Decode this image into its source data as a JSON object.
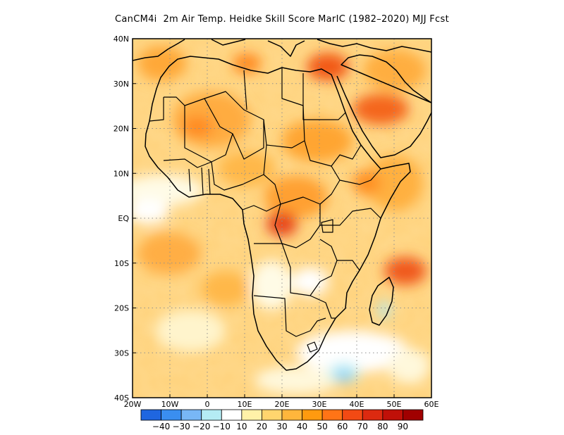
{
  "title": "CanCM4i  2m Air Temp. Heidke Skill Score MarIC (1982–2020) MJJ Fcst",
  "map": {
    "lon_range": [
      -20,
      60
    ],
    "lat_range": [
      -40,
      40
    ],
    "grid_lines": "dotted",
    "lon_ticks": [
      {
        "value": -20,
        "label": "20W"
      },
      {
        "value": -10,
        "label": "10W"
      },
      {
        "value": 0,
        "label": "0"
      },
      {
        "value": 10,
        "label": "10E"
      },
      {
        "value": 20,
        "label": "20E"
      },
      {
        "value": 30,
        "label": "30E"
      },
      {
        "value": 40,
        "label": "40E"
      },
      {
        "value": 50,
        "label": "50E"
      },
      {
        "value": 60,
        "label": "60E"
      }
    ],
    "lat_ticks": [
      {
        "value": 40,
        "label": "40N"
      },
      {
        "value": 30,
        "label": "30N"
      },
      {
        "value": 20,
        "label": "20N"
      },
      {
        "value": 10,
        "label": "10N"
      },
      {
        "value": 0,
        "label": "EQ"
      },
      {
        "value": -10,
        "label": "10S"
      },
      {
        "value": -20,
        "label": "20S"
      },
      {
        "value": -30,
        "label": "30S"
      },
      {
        "value": -40,
        "label": "40S"
      }
    ],
    "skill_hotspots": [
      {
        "region": "Egypt / Eastern Mediterranean",
        "lon": 32,
        "lat": 30,
        "score": 60
      },
      {
        "region": "Arabian Peninsula",
        "lon": 45,
        "lat": 23,
        "score": 55
      },
      {
        "region": "Central Africa",
        "lon": 21,
        "lat": -1,
        "score": 60
      },
      {
        "region": "Western Indian Ocean",
        "lon": 55,
        "lat": -11,
        "score": 55
      },
      {
        "region": "Western Sahara",
        "lon": -5,
        "lat": 22,
        "score": 45
      },
      {
        "region": "Southern Ocean near Madagascar",
        "lon": 36,
        "lat": -34,
        "score": -30
      }
    ]
  },
  "colorbar": {
    "colors": [
      "#1f66e0",
      "#3a8ef0",
      "#78b7f6",
      "#b4ecf4",
      "#ffffff",
      "#fff1a8",
      "#ffd56e",
      "#ffb63c",
      "#ff9a0f",
      "#ff7416",
      "#f24a14",
      "#dc2a10",
      "#c01008",
      "#a00000"
    ],
    "labels": [
      "−40",
      "−30",
      "−20",
      "−10",
      "10",
      "20",
      "30",
      "40",
      "50",
      "60",
      "70",
      "80",
      "90"
    ]
  }
}
